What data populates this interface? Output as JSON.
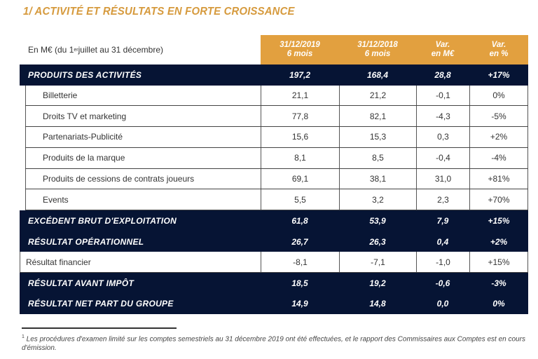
{
  "title": "1/ ACTIVITÉ ET RÉSULTATS EN FORTE CROISSANCE",
  "table": {
    "unit_label": "En M€ (du 1er juillet au 31 décembre)",
    "unit_label_parts": {
      "before": "En M€ (du 1",
      "sup": "er",
      "after": " juillet au 31 décembre)"
    },
    "columns": [
      {
        "line1": "31/12/2019",
        "line2": "6 mois"
      },
      {
        "line1": "31/12/2018",
        "line2": "6 mois"
      },
      {
        "line1": "Var.",
        "line2": "en M€"
      },
      {
        "line1": "Var.",
        "line2": "en %"
      }
    ],
    "rows": [
      {
        "label": "PRODUITS DES ACTIVITÉS",
        "style": "dark",
        "values": [
          "197,2",
          "168,4",
          "28,8",
          "+17%"
        ]
      },
      {
        "label": "Billetterie",
        "style": "sub",
        "values": [
          "21,1",
          "21,2",
          "-0,1",
          "0%"
        ]
      },
      {
        "label": "Droits TV et marketing",
        "style": "sub",
        "values": [
          "77,8",
          "82,1",
          "-4,3",
          "-5%"
        ]
      },
      {
        "label": "Partenariats-Publicité",
        "style": "sub",
        "values": [
          "15,6",
          "15,3",
          "0,3",
          "+2%"
        ]
      },
      {
        "label": "Produits de la marque",
        "style": "sub",
        "values": [
          "8,1",
          "8,5",
          "-0,4",
          "-4%"
        ]
      },
      {
        "label": "Produits de cessions de contrats joueurs",
        "style": "sub",
        "values": [
          "69,1",
          "38,1",
          "31,0",
          "+81%"
        ]
      },
      {
        "label": "Events",
        "style": "sub",
        "values": [
          "5,5",
          "3,2",
          "2,3",
          "+70%"
        ]
      },
      {
        "label": "EXCÉDENT BRUT D'EXPLOITATION",
        "style": "dark",
        "values": [
          "61,8",
          "53,9",
          "7,9",
          "+15%"
        ]
      },
      {
        "label": "RÉSULTAT OPÉRATIONNEL",
        "style": "dark",
        "values": [
          "26,7",
          "26,3",
          "0,4",
          "+2%"
        ]
      },
      {
        "label": "Résultat financier",
        "style": "flat",
        "values": [
          "-8,1",
          "-7,1",
          "-1,0",
          "+15%"
        ]
      },
      {
        "label": "RÉSULTAT AVANT IMPÔT",
        "style": "dark",
        "values": [
          "18,5",
          "19,2",
          "-0,6",
          "-3%"
        ]
      },
      {
        "label": "RÉSULTAT NET PART DU GROUPE",
        "style": "dark",
        "values": [
          "14,9",
          "14,8",
          "0,0",
          "0%"
        ]
      }
    ]
  },
  "footnote": {
    "marker": "1",
    "text": " Les procédures d'examen limité sur les comptes semestriels au 31 décembre 2019 ont été effectuées, et le rapport des Commissaires aux Comptes est en cours d'émission."
  },
  "colors": {
    "accent_orange": "#e2a03f",
    "title_orange": "#d69a3d",
    "dark_navy": "#061434"
  }
}
